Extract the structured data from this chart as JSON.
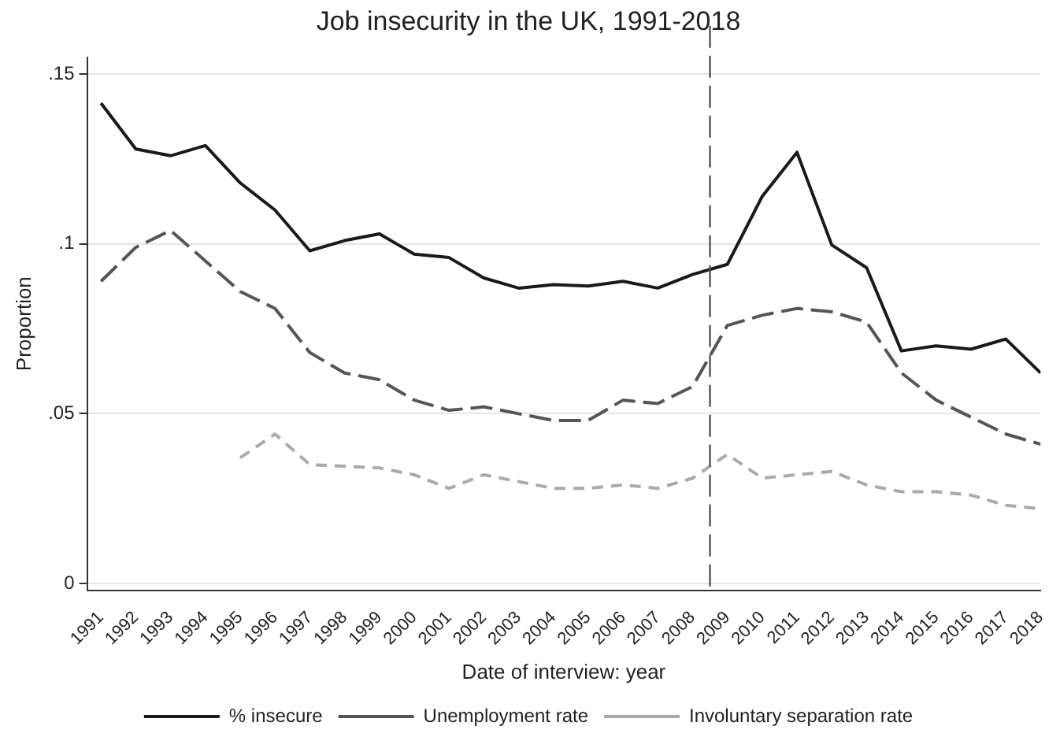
{
  "chart_data": {
    "type": "line",
    "title": "Job insecurity in the UK, 1991-2018",
    "xlabel": "Date of interview: year",
    "ylabel": "Proportion",
    "x": [
      1991,
      1992,
      1993,
      1994,
      1995,
      1996,
      1997,
      1998,
      1999,
      2000,
      2001,
      2002,
      2003,
      2004,
      2005,
      2006,
      2007,
      2008,
      2009,
      2010,
      2011,
      2012,
      2013,
      2014,
      2015,
      2016,
      2017,
      2018
    ],
    "series": [
      {
        "name": "% insecure",
        "color": "#1a1a1a",
        "line_style": "solid",
        "values": [
          0.1415,
          0.128,
          0.126,
          0.129,
          0.118,
          0.11,
          0.098,
          0.101,
          0.103,
          0.097,
          0.096,
          0.09,
          0.087,
          0.088,
          0.0876,
          0.089,
          0.087,
          0.091,
          0.094,
          0.114,
          0.127,
          0.0997,
          0.093,
          0.0685,
          0.07,
          0.069,
          0.072,
          0.062
        ]
      },
      {
        "name": "Unemployment rate",
        "color": "#555555",
        "line_style": "dashed",
        "values": [
          0.089,
          0.099,
          0.104,
          0.095,
          0.086,
          0.081,
          0.068,
          0.062,
          0.06,
          0.054,
          0.051,
          0.052,
          0.05,
          0.048,
          0.048,
          0.054,
          0.053,
          0.058,
          0.076,
          0.079,
          0.081,
          0.08,
          0.077,
          0.062,
          0.054,
          0.049,
          0.044,
          0.041
        ]
      },
      {
        "name": "Involuntary separation rate",
        "color": "#aaaaaa",
        "line_style": "dotted",
        "values": [
          null,
          null,
          null,
          null,
          0.037,
          0.044,
          0.035,
          0.0345,
          0.034,
          0.032,
          0.028,
          0.032,
          0.03,
          0.028,
          0.028,
          0.029,
          0.028,
          0.031,
          0.038,
          0.031,
          0.032,
          0.033,
          0.029,
          0.027,
          0.027,
          0.026,
          0.023,
          0.022
        ]
      }
    ],
    "xlim": [
      1990.6,
      2018
    ],
    "xticks": [
      1991,
      1992,
      1993,
      1994,
      1995,
      1996,
      1997,
      1998,
      1999,
      2000,
      2001,
      2002,
      2003,
      2004,
      2005,
      2006,
      2007,
      2008,
      2009,
      2010,
      2011,
      2012,
      2013,
      2014,
      2015,
      2016,
      2017,
      2018
    ],
    "ylim": [
      -0.002,
      0.155
    ],
    "yticks": [
      {
        "value": 0,
        "label": "0"
      },
      {
        "value": 0.05,
        "label": ".05"
      },
      {
        "value": 0.1,
        "label": ".1"
      },
      {
        "value": 0.15,
        "label": ".15"
      }
    ],
    "ref_lines": [
      {
        "axis": "x",
        "value": 2008.5,
        "color": "#555555",
        "line_style": "dashed"
      }
    ],
    "grid": "y",
    "legend": "bottom",
    "marker": "none"
  }
}
